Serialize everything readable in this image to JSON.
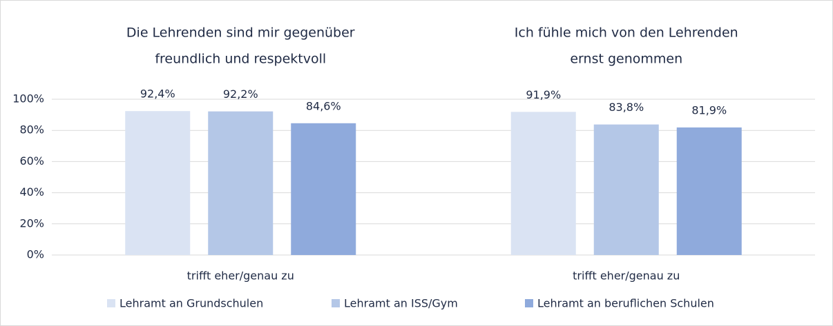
{
  "chart_data": [
    {
      "type": "bar",
      "title": [
        "Die Lehrenden sind mir gegenüber",
        "freundlich und respektvoll"
      ],
      "categories": [
        "trifft eher/genau zu"
      ],
      "series": [
        {
          "name": "Lehramt an Grundschulen",
          "color": "#dae3f3",
          "values": [
            92.4
          ],
          "value_labels": [
            "92,4%"
          ]
        },
        {
          "name": "Lehramt an ISS/Gym",
          "color": "#b4c7e7",
          "values": [
            92.2
          ],
          "value_labels": [
            "92,2%"
          ]
        },
        {
          "name": "Lehramt an beruflichen Schulen",
          "color": "#8faadc",
          "values": [
            84.6
          ],
          "value_labels": [
            "84,6%"
          ]
        }
      ],
      "ylim": [
        0,
        100
      ],
      "yticks": [
        {
          "value": 0,
          "label": "0%"
        },
        {
          "value": 20,
          "label": "20%"
        },
        {
          "value": 40,
          "label": "40%"
        },
        {
          "value": 60,
          "label": "60%"
        },
        {
          "value": 80,
          "label": "80%"
        },
        {
          "value": 100,
          "label": "100%"
        }
      ],
      "grid": true
    },
    {
      "type": "bar",
      "title": [
        "Ich fühle mich von den Lehrenden",
        "ernst genommen"
      ],
      "categories": [
        "trifft eher/genau zu"
      ],
      "series": [
        {
          "color": "#dae3f3",
          "values": [
            91.9
          ],
          "value_labels": [
            "91,9%"
          ]
        },
        {
          "color": "#b4c7e7",
          "values": [
            83.8
          ],
          "value_labels": [
            "83,8%"
          ]
        },
        {
          "color": "#8faadc",
          "values": [
            81.9
          ],
          "value_labels": [
            "81,9%"
          ]
        }
      ],
      "ylim": [
        0,
        100
      ]
    }
  ]
}
